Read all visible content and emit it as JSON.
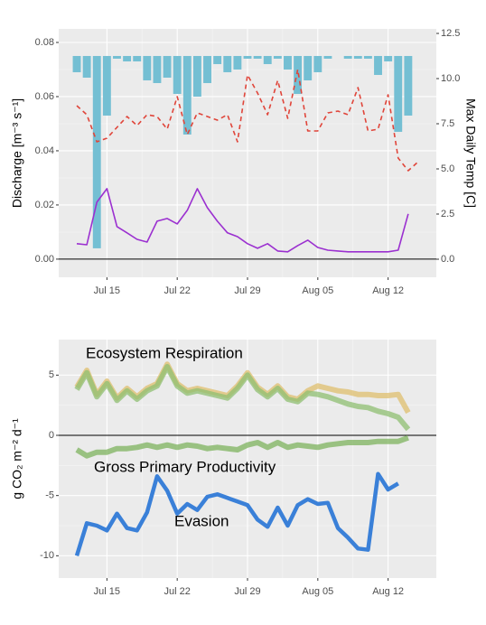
{
  "chart_data": [
    {
      "type": "line",
      "ylabel": "Discharge [m⁻³ s⁻¹]",
      "y2label": "Max Daily Temp [C]",
      "x": [
        12,
        13,
        14,
        15,
        16,
        17,
        18,
        19,
        20,
        21,
        22,
        23,
        24,
        25,
        26,
        27,
        28,
        29,
        30,
        31,
        32,
        33,
        34,
        35,
        36,
        37,
        38,
        39,
        40,
        41,
        42,
        43,
        44,
        45,
        46
      ],
      "xlim": [
        10.2,
        47.8
      ],
      "xticks": [
        {
          "value": 15,
          "label": "Jul 15"
        },
        {
          "value": 22,
          "label": "Jul 22"
        },
        {
          "value": 29,
          "label": "Jul 29"
        },
        {
          "value": 36,
          "label": "Aug 05"
        },
        {
          "value": 43,
          "label": "Aug 12"
        }
      ],
      "ylim": [
        -0.0067,
        0.085
      ],
      "yticks": [
        {
          "value": 0,
          "label": "0.00"
        },
        {
          "value": 0.02,
          "label": "0.02"
        },
        {
          "value": 0.04,
          "label": "0.04"
        },
        {
          "value": 0.06,
          "label": "0.06"
        },
        {
          "value": 0.08,
          "label": "0.08"
        }
      ],
      "y2lim": [
        -1.0,
        12.75
      ],
      "y2ticks": [
        {
          "value": 0,
          "label": "0.0"
        },
        2.5,
        {
          "value": 5,
          "label": "5.0"
        },
        {
          "value": 7.5,
          "label": "7.5"
        },
        {
          "value": 10,
          "label": "10.0"
        },
        12.5
      ],
      "grid": true,
      "zero_line": true,
      "bar_origin": 0.075,
      "series": [
        {
          "kind": "bar",
          "color": "#74bfd3",
          "values": [
            0.069,
            0.067,
            0.004,
            0.053,
            0.074,
            0.073,
            0.073,
            0.066,
            0.065,
            0.067,
            0.061,
            0.046,
            0.06,
            0.065,
            0.072,
            0.069,
            0.07,
            0.074,
            0.074,
            0.072,
            0.074,
            0.07,
            0.061,
            0.066,
            0.069,
            0.074,
            null,
            0.074,
            0.074,
            0.074,
            0.068,
            0.073,
            0.047,
            0.053,
            null
          ]
        },
        {
          "kind": "line",
          "dash": true,
          "axis": "y2",
          "color": "#e0453a",
          "values": [
            8.5,
            8.0,
            6.5,
            6.7,
            7.3,
            7.9,
            7.4,
            8.0,
            7.9,
            7.2,
            9.0,
            6.9,
            8.1,
            7.9,
            7.7,
            8.0,
            6.5,
            10.2,
            9.2,
            8.0,
            9.9,
            7.8,
            10.5,
            7.1,
            7.1,
            8.1,
            8.2,
            8.0,
            9.5,
            7.1,
            7.2,
            9.1,
            5.6,
            4.9,
            5.4
          ]
        },
        {
          "kind": "line",
          "color": "#9b30d0",
          "values": [
            0.0057,
            0.0053,
            0.021,
            0.026,
            0.012,
            0.0097,
            0.0073,
            0.0063,
            0.014,
            0.015,
            0.013,
            0.018,
            0.026,
            0.019,
            0.014,
            0.0097,
            0.0083,
            0.0057,
            0.004,
            0.0057,
            0.003,
            0.0027,
            0.005,
            0.007,
            0.0043,
            0.0033,
            0.003,
            0.0027,
            0.0027,
            0.0027,
            0.0027,
            0.0027,
            0.0033,
            0.0167,
            null
          ]
        }
      ]
    },
    {
      "type": "line",
      "ylabel": "g CO₂ m⁻² d⁻¹",
      "x": [
        12,
        13,
        14,
        15,
        16,
        17,
        18,
        19,
        20,
        21,
        22,
        23,
        24,
        25,
        26,
        27,
        28,
        29,
        30,
        31,
        32,
        33,
        34,
        35,
        36,
        37,
        38,
        39,
        40,
        41,
        42,
        43,
        44,
        45
      ],
      "xlim": [
        10.2,
        47.8
      ],
      "xticks": [
        {
          "value": 15,
          "label": "Jul 15"
        },
        {
          "value": 22,
          "label": "Jul 22"
        },
        {
          "value": 29,
          "label": "Jul 29"
        },
        {
          "value": 36,
          "label": "Aug 05"
        },
        {
          "value": 43,
          "label": "Aug 12"
        }
      ],
      "ylim": [
        -11.85,
        7.95
      ],
      "yticks": [
        5,
        0,
        -5,
        -10
      ],
      "grid": true,
      "zero_line": true,
      "series": [
        {
          "kind": "band",
          "color": "#dfbf6e",
          "values": [
            4.0,
            5.4,
            3.4,
            4.5,
            3.1,
            3.9,
            3.2,
            3.9,
            4.3,
            5.9,
            4.3,
            3.7,
            3.9,
            3.7,
            3.5,
            3.3,
            4.1,
            5.2,
            4.0,
            3.4,
            4.1,
            3.2,
            3.0,
            3.7,
            4.1,
            3.9,
            3.7,
            3.6,
            3.4,
            3.4,
            3.3,
            3.3,
            3.4,
            1.9
          ]
        },
        {
          "kind": "band",
          "name": "Ecosystem Respiration",
          "color": "#8fbf72",
          "values": [
            3.8,
            5.2,
            3.2,
            4.3,
            2.9,
            3.7,
            3.0,
            3.7,
            4.1,
            5.7,
            4.1,
            3.5,
            3.7,
            3.5,
            3.3,
            3.1,
            3.9,
            5.0,
            3.8,
            3.2,
            3.9,
            3.0,
            2.8,
            3.5,
            3.4,
            3.2,
            2.9,
            2.6,
            2.4,
            2.3,
            2.0,
            1.8,
            1.5,
            0.5
          ]
        },
        {
          "kind": "band",
          "name": "Gross Primary Productivity",
          "color": "#7db35e",
          "values": [
            -1.2,
            -1.7,
            -1.4,
            -1.4,
            -1.1,
            -1.1,
            -1.0,
            -0.8,
            -1.0,
            -0.8,
            -1.0,
            -0.8,
            -0.9,
            -1.1,
            -1.0,
            -1.1,
            -1.2,
            -0.8,
            -0.6,
            -1.0,
            -0.6,
            -1.0,
            -0.8,
            -0.9,
            -1.0,
            -0.8,
            -0.7,
            -0.6,
            -0.6,
            -0.6,
            -0.5,
            -0.5,
            -0.5,
            -0.2
          ]
        },
        {
          "kind": "thick",
          "name": "Evasion",
          "color": "#3a80d8",
          "values": [
            -10.0,
            -7.3,
            -7.5,
            -7.9,
            -6.5,
            -7.7,
            -7.9,
            -6.4,
            -3.4,
            -4.6,
            -6.5,
            -5.7,
            -6.2,
            -5.1,
            -4.9,
            -5.2,
            -5.5,
            -5.8,
            -7.0,
            -7.6,
            -6.0,
            -7.5,
            -5.8,
            -5.3,
            -5.7,
            -5.6,
            -7.7,
            -8.5,
            -9.4,
            -9.5,
            -3.2,
            -4.5,
            -4.0,
            null
          ]
        }
      ]
    }
  ]
}
